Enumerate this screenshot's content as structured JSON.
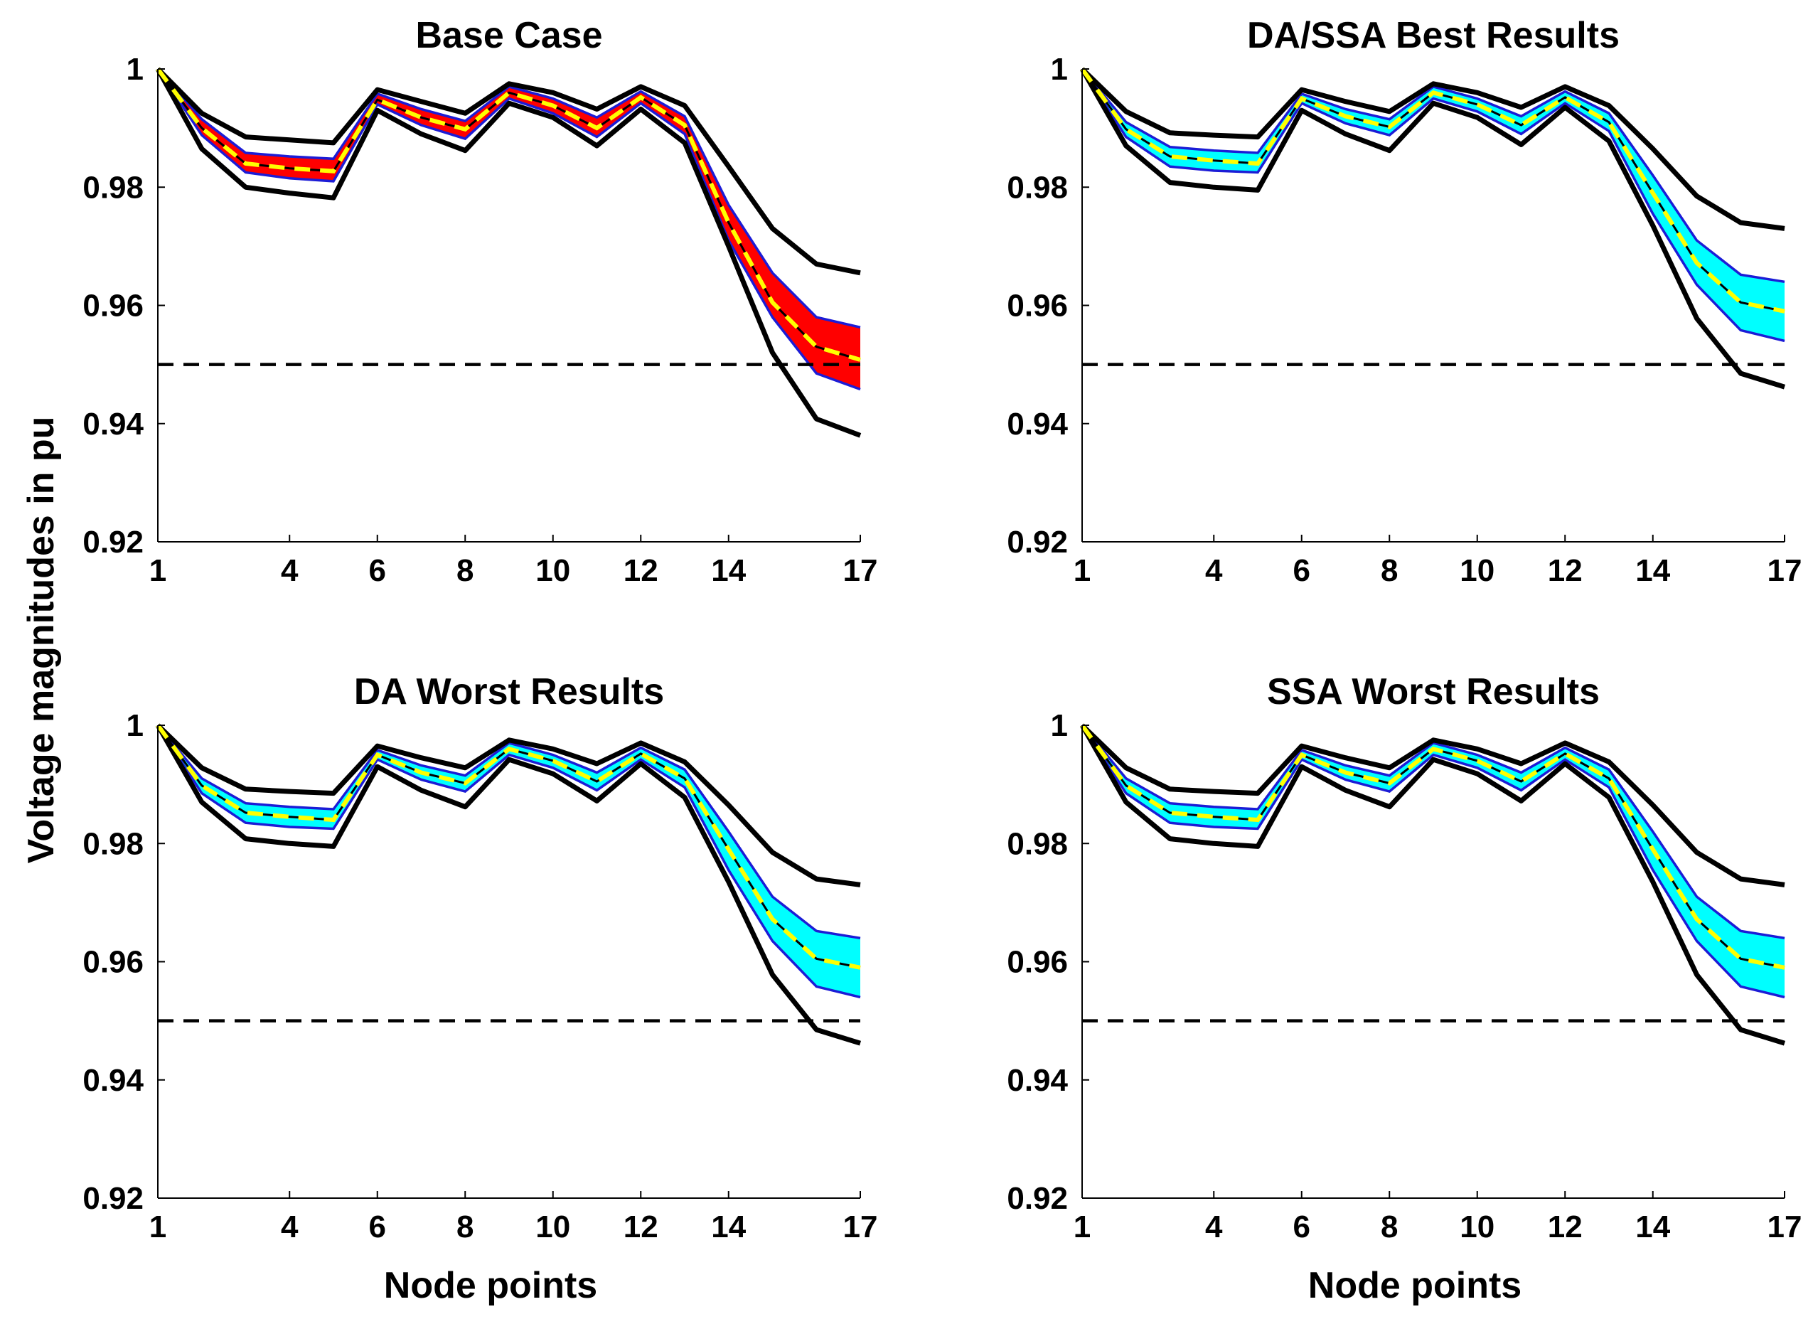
{
  "figure": {
    "ylabel": "Voltage magnitudes in pu",
    "xlabel": "Node points"
  },
  "colors": {
    "envelope": "#000000",
    "band_outline": "#1c1cd6",
    "mean_line": "#000000",
    "mean_dash": "#ffff00",
    "limit_line": "#000000",
    "fill_base": "#ff0000",
    "fill_optimized": "#00ffff"
  },
  "chart_data": [
    {
      "type": "line",
      "title": "Base Case",
      "fill": "red",
      "x": [
        1,
        2,
        3,
        4,
        5,
        6,
        7,
        8,
        9,
        10,
        11,
        12,
        13,
        14,
        15,
        16,
        17
      ],
      "xticks": [
        1,
        4,
        6,
        8,
        10,
        12,
        14,
        17
      ],
      "yticks": [
        0.92,
        0.94,
        0.96,
        0.98,
        1
      ],
      "ylim": [
        0.92,
        1.0
      ],
      "xlim": [
        1,
        17
      ],
      "limit": 0.95,
      "series": [
        {
          "name": "upper envelope",
          "values": [
            1.0,
            0.9925,
            0.9885,
            0.988,
            0.9875,
            0.9965,
            0.9945,
            0.9925,
            0.9975,
            0.996,
            0.9932,
            0.997,
            0.9938,
            0.9835,
            0.973,
            0.967,
            0.9655
          ]
        },
        {
          "name": "upper band",
          "values": [
            1.0,
            0.9915,
            0.9858,
            0.9852,
            0.9848,
            0.9958,
            0.9932,
            0.9912,
            0.997,
            0.995,
            0.9918,
            0.9962,
            0.992,
            0.977,
            0.9655,
            0.958,
            0.9563
          ]
        },
        {
          "name": "mean",
          "values": [
            1.0,
            0.99,
            0.984,
            0.9832,
            0.9827,
            0.9948,
            0.9918,
            0.9898,
            0.996,
            0.9938,
            0.99,
            0.9952,
            0.9905,
            0.974,
            0.9605,
            0.953,
            0.9508
          ]
        },
        {
          "name": "lower band",
          "values": [
            1.0,
            0.9888,
            0.9825,
            0.9815,
            0.981,
            0.994,
            0.9905,
            0.9882,
            0.995,
            0.9925,
            0.9885,
            0.9942,
            0.989,
            0.971,
            0.958,
            0.9485,
            0.9458
          ]
        },
        {
          "name": "lower envelope",
          "values": [
            1.0,
            0.9865,
            0.98,
            0.979,
            0.9782,
            0.993,
            0.989,
            0.9862,
            0.9942,
            0.9918,
            0.987,
            0.9932,
            0.9875,
            0.97,
            0.952,
            0.9408,
            0.938
          ]
        }
      ]
    },
    {
      "type": "line",
      "title": "DA/SSA Best Results",
      "fill": "cyan",
      "x": [
        1,
        2,
        3,
        4,
        5,
        6,
        7,
        8,
        9,
        10,
        11,
        12,
        13,
        14,
        15,
        16,
        17
      ],
      "xticks": [
        1,
        4,
        6,
        8,
        10,
        12,
        14,
        17
      ],
      "yticks": [
        0.92,
        0.94,
        0.96,
        0.98,
        1
      ],
      "ylim": [
        0.92,
        1.0
      ],
      "xlim": [
        1,
        17
      ],
      "limit": 0.95,
      "series": [
        {
          "name": "upper envelope",
          "values": [
            1.0,
            0.9928,
            0.9892,
            0.9888,
            0.9885,
            0.9965,
            0.9945,
            0.9928,
            0.9975,
            0.996,
            0.9935,
            0.997,
            0.9938,
            0.9865,
            0.9785,
            0.974,
            0.973
          ]
        },
        {
          "name": "upper band",
          "values": [
            1.0,
            0.991,
            0.9868,
            0.9862,
            0.9858,
            0.9958,
            0.9932,
            0.9915,
            0.997,
            0.995,
            0.992,
            0.9962,
            0.9925,
            0.982,
            0.971,
            0.9652,
            0.964
          ]
        },
        {
          "name": "mean",
          "values": [
            1.0,
            0.9898,
            0.9852,
            0.9845,
            0.984,
            0.995,
            0.992,
            0.9902,
            0.996,
            0.994,
            0.9905,
            0.9952,
            0.991,
            0.979,
            0.9672,
            0.9605,
            0.959
          ]
        },
        {
          "name": "lower band",
          "values": [
            1.0,
            0.9885,
            0.9835,
            0.9828,
            0.9825,
            0.9942,
            0.9908,
            0.9888,
            0.995,
            0.9928,
            0.989,
            0.9942,
            0.9895,
            0.9755,
            0.9635,
            0.9558,
            0.954
          ]
        },
        {
          "name": "lower envelope",
          "values": [
            1.0,
            0.987,
            0.9808,
            0.98,
            0.9795,
            0.993,
            0.989,
            0.9862,
            0.9942,
            0.9918,
            0.9872,
            0.9935,
            0.9878,
            0.9735,
            0.9578,
            0.9485,
            0.9462
          ]
        }
      ]
    },
    {
      "type": "line",
      "title": "DA Worst Results",
      "fill": "cyan",
      "x": [
        1,
        2,
        3,
        4,
        5,
        6,
        7,
        8,
        9,
        10,
        11,
        12,
        13,
        14,
        15,
        16,
        17
      ],
      "xticks": [
        1,
        4,
        6,
        8,
        10,
        12,
        14,
        17
      ],
      "yticks": [
        0.92,
        0.94,
        0.96,
        0.98,
        1
      ],
      "ylim": [
        0.92,
        1.0
      ],
      "xlim": [
        1,
        17
      ],
      "limit": 0.95,
      "series": [
        {
          "name": "upper envelope",
          "values": [
            1.0,
            0.9928,
            0.9892,
            0.9888,
            0.9885,
            0.9965,
            0.9945,
            0.9928,
            0.9975,
            0.996,
            0.9935,
            0.997,
            0.9938,
            0.9865,
            0.9785,
            0.974,
            0.973
          ]
        },
        {
          "name": "upper band",
          "values": [
            1.0,
            0.991,
            0.9868,
            0.9862,
            0.9858,
            0.9958,
            0.9932,
            0.9915,
            0.997,
            0.995,
            0.992,
            0.9962,
            0.9925,
            0.982,
            0.971,
            0.9652,
            0.964
          ]
        },
        {
          "name": "mean",
          "values": [
            1.0,
            0.9898,
            0.9852,
            0.9845,
            0.984,
            0.995,
            0.992,
            0.9902,
            0.996,
            0.994,
            0.9905,
            0.9952,
            0.991,
            0.979,
            0.9672,
            0.9605,
            0.959
          ]
        },
        {
          "name": "lower band",
          "values": [
            1.0,
            0.9885,
            0.9835,
            0.9828,
            0.9825,
            0.9942,
            0.9908,
            0.9888,
            0.995,
            0.9928,
            0.989,
            0.9942,
            0.9895,
            0.9755,
            0.9635,
            0.9558,
            0.954
          ]
        },
        {
          "name": "lower envelope",
          "values": [
            1.0,
            0.987,
            0.9808,
            0.98,
            0.9795,
            0.993,
            0.989,
            0.9862,
            0.9942,
            0.9918,
            0.9872,
            0.9935,
            0.9878,
            0.9735,
            0.9578,
            0.9485,
            0.9462
          ]
        }
      ]
    },
    {
      "type": "line",
      "title": "SSA Worst Results",
      "fill": "cyan",
      "x": [
        1,
        2,
        3,
        4,
        5,
        6,
        7,
        8,
        9,
        10,
        11,
        12,
        13,
        14,
        15,
        16,
        17
      ],
      "xticks": [
        1,
        4,
        6,
        8,
        10,
        12,
        14,
        17
      ],
      "yticks": [
        0.92,
        0.94,
        0.96,
        0.98,
        1
      ],
      "ylim": [
        0.92,
        1.0
      ],
      "xlim": [
        1,
        17
      ],
      "limit": 0.95,
      "series": [
        {
          "name": "upper envelope",
          "values": [
            1.0,
            0.9928,
            0.9892,
            0.9888,
            0.9885,
            0.9965,
            0.9945,
            0.9928,
            0.9975,
            0.996,
            0.9935,
            0.997,
            0.9938,
            0.9865,
            0.9785,
            0.974,
            0.973
          ]
        },
        {
          "name": "upper band",
          "values": [
            1.0,
            0.991,
            0.9868,
            0.9862,
            0.9858,
            0.9958,
            0.9932,
            0.9915,
            0.997,
            0.995,
            0.992,
            0.9962,
            0.9925,
            0.982,
            0.971,
            0.9652,
            0.964
          ]
        },
        {
          "name": "mean",
          "values": [
            1.0,
            0.9898,
            0.9852,
            0.9845,
            0.984,
            0.995,
            0.992,
            0.9902,
            0.996,
            0.994,
            0.9905,
            0.9952,
            0.991,
            0.979,
            0.9672,
            0.9605,
            0.959
          ]
        },
        {
          "name": "lower band",
          "values": [
            1.0,
            0.9885,
            0.9835,
            0.9828,
            0.9825,
            0.9942,
            0.9908,
            0.9888,
            0.995,
            0.9928,
            0.989,
            0.9942,
            0.9895,
            0.9755,
            0.9635,
            0.9558,
            0.954
          ]
        },
        {
          "name": "lower envelope",
          "values": [
            1.0,
            0.987,
            0.9808,
            0.98,
            0.9795,
            0.993,
            0.989,
            0.9862,
            0.9942,
            0.9918,
            0.9872,
            0.9935,
            0.9878,
            0.9735,
            0.9578,
            0.9485,
            0.9462
          ]
        }
      ]
    }
  ]
}
